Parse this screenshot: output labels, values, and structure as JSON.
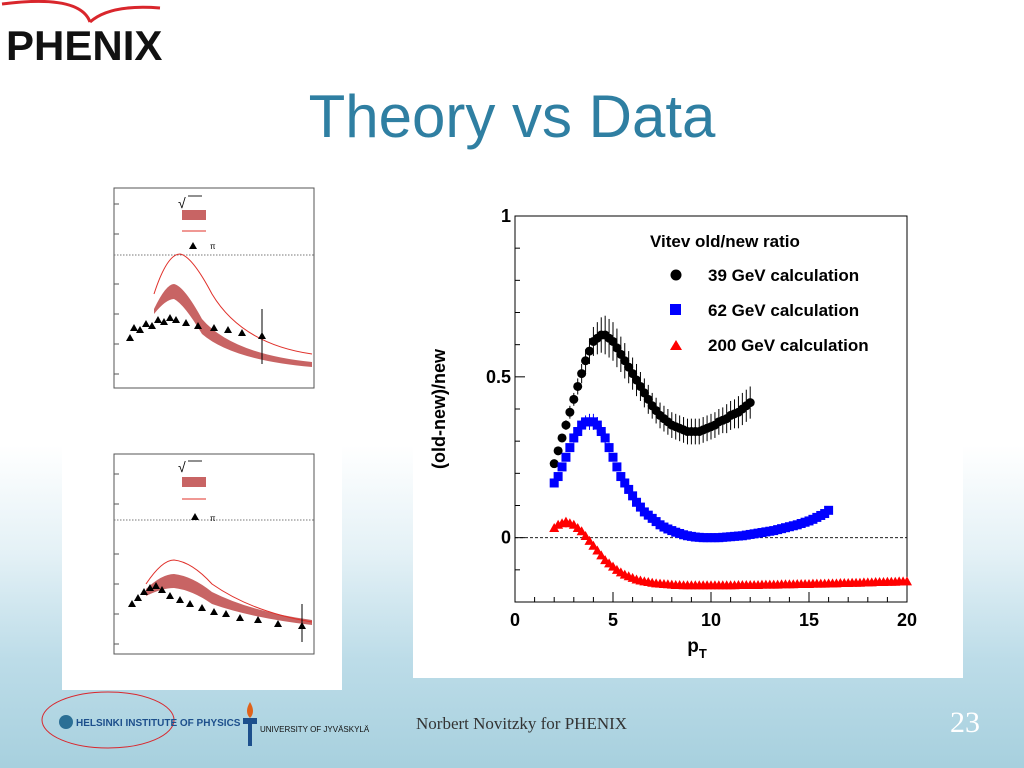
{
  "logo": {
    "text": "PHENIX"
  },
  "title": "Theory vs Data",
  "insets": [
    {
      "legend": {
        "sqrt_symbol": "√",
        "pi_label": "π"
      }
    },
    {
      "legend": {
        "sqrt_symbol": "√",
        "pi_label": "π"
      }
    }
  ],
  "chart_data": {
    "type": "scatter",
    "title": "",
    "xlabel": "p",
    "xlabel_subscript": "T",
    "ylabel": "(old-new)/new",
    "xlim": [
      0,
      20
    ],
    "ylim": [
      -0.2,
      1.0
    ],
    "x_ticks": [
      0,
      5,
      10,
      15,
      20
    ],
    "x_tick_labels": [
      "0",
      "5",
      "10",
      "15",
      "20"
    ],
    "y_ticks": [
      0,
      0.5,
      1
    ],
    "y_tick_labels": [
      "0",
      "0.5",
      "1"
    ],
    "reference_line": 0,
    "legend_title": "Vitev old/new ratio",
    "legend_position": "top-right",
    "series": [
      {
        "name": "39 GeV calculation",
        "marker": "circle",
        "color": "#000000",
        "x": [
          2.0,
          2.2,
          2.4,
          2.6,
          2.8,
          3.0,
          3.2,
          3.4,
          3.6,
          3.8,
          4.0,
          4.2,
          4.4,
          4.6,
          4.8,
          5.0,
          5.2,
          5.4,
          5.6,
          5.8,
          6.0,
          6.2,
          6.4,
          6.6,
          6.8,
          7.0,
          7.2,
          7.4,
          7.6,
          7.8,
          8.0,
          8.2,
          8.4,
          8.6,
          8.8,
          9.0,
          9.2,
          9.4,
          9.6,
          9.8,
          10.0,
          10.2,
          10.4,
          10.6,
          10.8,
          11.0,
          11.2,
          11.4,
          11.6,
          11.8,
          12.0
        ],
        "y": [
          0.23,
          0.27,
          0.31,
          0.35,
          0.39,
          0.43,
          0.47,
          0.51,
          0.55,
          0.58,
          0.61,
          0.62,
          0.63,
          0.63,
          0.62,
          0.61,
          0.59,
          0.57,
          0.55,
          0.53,
          0.51,
          0.49,
          0.47,
          0.45,
          0.43,
          0.41,
          0.395,
          0.38,
          0.37,
          0.36,
          0.35,
          0.345,
          0.34,
          0.335,
          0.33,
          0.33,
          0.33,
          0.33,
          0.335,
          0.34,
          0.345,
          0.35,
          0.36,
          0.365,
          0.37,
          0.38,
          0.385,
          0.39,
          0.4,
          0.41,
          0.42
        ],
        "yerr": [
          0.01,
          0.01,
          0.01,
          0.015,
          0.02,
          0.02,
          0.025,
          0.03,
          0.035,
          0.04,
          0.045,
          0.05,
          0.055,
          0.06,
          0.06,
          0.06,
          0.06,
          0.055,
          0.055,
          0.05,
          0.05,
          0.05,
          0.045,
          0.045,
          0.045,
          0.04,
          0.04,
          0.04,
          0.04,
          0.04,
          0.04,
          0.04,
          0.04,
          0.04,
          0.04,
          0.04,
          0.04,
          0.04,
          0.04,
          0.04,
          0.04,
          0.04,
          0.04,
          0.04,
          0.045,
          0.045,
          0.045,
          0.05,
          0.05,
          0.05,
          0.05
        ]
      },
      {
        "name": "62 GeV calculation",
        "marker": "square",
        "color": "#0000ff",
        "x": [
          2.0,
          2.2,
          2.4,
          2.6,
          2.8,
          3.0,
          3.2,
          3.4,
          3.6,
          3.8,
          4.0,
          4.2,
          4.4,
          4.6,
          4.8,
          5.0,
          5.2,
          5.4,
          5.6,
          5.8,
          6.0,
          6.2,
          6.4,
          6.6,
          6.8,
          7.0,
          7.2,
          7.4,
          7.6,
          7.8,
          8.0,
          8.2,
          8.4,
          8.6,
          8.8,
          9.0,
          9.2,
          9.4,
          9.6,
          9.8,
          10.0,
          10.2,
          10.4,
          10.6,
          10.8,
          11.0,
          11.2,
          11.4,
          11.6,
          11.8,
          12.0,
          12.2,
          12.4,
          12.6,
          12.8,
          13.0,
          13.2,
          13.4,
          13.6,
          13.8,
          14.0,
          14.2,
          14.4,
          14.6,
          14.8,
          15.0,
          15.2,
          15.4,
          15.6,
          15.8,
          16.0
        ],
        "y": [
          0.17,
          0.19,
          0.22,
          0.25,
          0.28,
          0.31,
          0.33,
          0.35,
          0.36,
          0.36,
          0.36,
          0.35,
          0.33,
          0.31,
          0.28,
          0.25,
          0.22,
          0.19,
          0.17,
          0.15,
          0.13,
          0.11,
          0.095,
          0.08,
          0.07,
          0.06,
          0.05,
          0.04,
          0.033,
          0.027,
          0.022,
          0.017,
          0.013,
          0.009,
          0.006,
          0.004,
          0.002,
          0.001,
          0.0,
          0.0,
          0.0,
          0.0,
          0.0,
          0.001,
          0.002,
          0.003,
          0.004,
          0.005,
          0.006,
          0.008,
          0.01,
          0.012,
          0.014,
          0.016,
          0.018,
          0.02,
          0.022,
          0.025,
          0.028,
          0.031,
          0.034,
          0.037,
          0.04,
          0.044,
          0.048,
          0.052,
          0.057,
          0.063,
          0.069,
          0.075,
          0.085
        ],
        "yerr": [
          0.01,
          0.01,
          0.01,
          0.01,
          0.01,
          0.015,
          0.015,
          0.02,
          0.02,
          0.025,
          0.025,
          0.025,
          0.02,
          0.02,
          0.015,
          0.01,
          0.01,
          0.01,
          0.01,
          0.01,
          0.01,
          0.005,
          0.005,
          0.005,
          0.005,
          0.005,
          0.005,
          0.005,
          0.005,
          0.005,
          0.005,
          0.005,
          0.005,
          0.005,
          0.005,
          0.005,
          0.005,
          0.005,
          0.005,
          0.005,
          0.005,
          0.005,
          0.005,
          0.005,
          0.005,
          0.005,
          0.005,
          0.005,
          0.005,
          0.005,
          0.005,
          0.005,
          0.005,
          0.005,
          0.005,
          0.005,
          0.005,
          0.005,
          0.005,
          0.005,
          0.005,
          0.005,
          0.005,
          0.005,
          0.005,
          0.005,
          0.005,
          0.005,
          0.005,
          0.005,
          0.005
        ]
      },
      {
        "name": "200 GeV calculation",
        "marker": "triangle",
        "color": "#ff0000",
        "x": [
          2.0,
          2.2,
          2.4,
          2.6,
          2.8,
          3.0,
          3.2,
          3.4,
          3.6,
          3.8,
          4.0,
          4.2,
          4.4,
          4.6,
          4.8,
          5.0,
          5.2,
          5.4,
          5.6,
          5.8,
          6.0,
          6.2,
          6.4,
          6.6,
          6.8,
          7.0,
          7.2,
          7.4,
          7.6,
          7.8,
          8.0,
          8.2,
          8.4,
          8.6,
          8.8,
          9.0,
          9.2,
          9.4,
          9.6,
          9.8,
          10.0,
          10.2,
          10.4,
          10.6,
          10.8,
          11.0,
          11.2,
          11.4,
          11.6,
          11.8,
          12.0,
          12.2,
          12.4,
          12.6,
          12.8,
          13.0,
          13.2,
          13.4,
          13.6,
          13.8,
          14.0,
          14.2,
          14.4,
          14.6,
          14.8,
          15.0,
          15.2,
          15.4,
          15.6,
          15.8,
          16.0,
          16.2,
          16.4,
          16.6,
          16.8,
          17.0,
          17.2,
          17.4,
          17.6,
          17.8,
          18.0,
          18.2,
          18.4,
          18.6,
          18.8,
          19.0,
          19.2,
          19.4,
          19.6,
          19.8,
          20.0
        ],
        "y": [
          0.03,
          0.04,
          0.045,
          0.05,
          0.045,
          0.04,
          0.03,
          0.02,
          0.005,
          -0.01,
          -0.025,
          -0.04,
          -0.055,
          -0.07,
          -0.08,
          -0.09,
          -0.1,
          -0.108,
          -0.115,
          -0.12,
          -0.125,
          -0.13,
          -0.133,
          -0.136,
          -0.138,
          -0.14,
          -0.142,
          -0.143,
          -0.144,
          -0.145,
          -0.146,
          -0.147,
          -0.147,
          -0.148,
          -0.148,
          -0.148,
          -0.148,
          -0.148,
          -0.148,
          -0.148,
          -0.148,
          -0.148,
          -0.148,
          -0.148,
          -0.148,
          -0.148,
          -0.148,
          -0.147,
          -0.147,
          -0.147,
          -0.147,
          -0.147,
          -0.147,
          -0.146,
          -0.146,
          -0.146,
          -0.146,
          -0.146,
          -0.145,
          -0.145,
          -0.145,
          -0.145,
          -0.144,
          -0.144,
          -0.144,
          -0.144,
          -0.143,
          -0.143,
          -0.143,
          -0.143,
          -0.142,
          -0.142,
          -0.142,
          -0.141,
          -0.141,
          -0.141,
          -0.14,
          -0.14,
          -0.14,
          -0.139,
          -0.139,
          -0.139,
          -0.138,
          -0.138,
          -0.138,
          -0.137,
          -0.137,
          -0.137,
          -0.136,
          -0.136,
          -0.136
        ]
      }
    ]
  },
  "footer": {
    "hip_label": "HELSINKI INSTITUTE OF PHYSICS",
    "jyu_label": "UNIVERSITY OF JYVÄSKYLÄ",
    "author": "Norbert Novitzky for PHENIX",
    "slide_number": "23"
  },
  "colors": {
    "title": "#2f7fa2",
    "logo_red": "#d9262c",
    "band": "#c86464",
    "curve_red": "#e0302a"
  }
}
